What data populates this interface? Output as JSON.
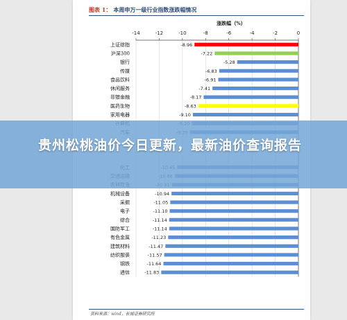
{
  "figure": {
    "number": "图表 1：",
    "title": "本周申万一级行业指数涨跌幅情况",
    "source": "资料来源：wind，长城证券研究所"
  },
  "overlay": {
    "headline": "贵州松桃油价今日更新，最新油价查询报告"
  },
  "colors": {
    "bar_default": "#5b8ed2",
    "bar_highlight_red": "#ff0000",
    "bar_highlight_green": "#92d050",
    "bar_highlight_yellow": "#ffff00",
    "title_color": "#2f4d7a",
    "overlay_color": "#74a6d6"
  },
  "chart_data": {
    "type": "bar",
    "orientation": "horizontal",
    "axis_label": "涨跌幅（%）",
    "xlim": [
      -14,
      0
    ],
    "ticks": [
      -14,
      -12,
      -10,
      -8,
      -6,
      -4,
      -2,
      0
    ],
    "grid": true,
    "categories": [
      "上证综指",
      "沪深300",
      "银行",
      "传媒",
      "食品饮料",
      "休闲服务",
      "非银金融",
      "医药生物",
      "家用电器",
      "计算机",
      "汽车",
      "",
      "",
      "",
      "化工",
      "交通运输",
      "农林牧渔",
      "机械设备",
      "采掘",
      "电子",
      "综合",
      "国防军工",
      "有色金属",
      "建筑材料",
      "纺织服装",
      "钢铁",
      "通信"
    ],
    "values": [
      -8.96,
      -7.22,
      -5.28,
      -6.83,
      -6.91,
      -7.41,
      -8.17,
      -8.63,
      -9.1,
      -9.2,
      -9.35,
      null,
      null,
      null,
      -10.45,
      -10.66,
      -10.91,
      -10.94,
      -11.05,
      -11.1,
      -11.14,
      -11.14,
      -11.23,
      -11.47,
      -11.57,
      -11.64,
      -11.83
    ],
    "value_labels": [
      "-8.96",
      "-7.22",
      "-5.28",
      "-6.83",
      "-6.91",
      "-7.41",
      "-8.17",
      "-8.63",
      "-9.10",
      "-9.20",
      "-9.35",
      "",
      "",
      "",
      "-10.45",
      "-10.66",
      "-10.91",
      "-10.94",
      "-11.05",
      "-11.10",
      "-11.14",
      "-11.14",
      "-11.23",
      "-11.47",
      "-11.57",
      "-11.64",
      "-11.83"
    ],
    "highlight": {
      "0": "red",
      "1": "green",
      "7": "yellow"
    }
  }
}
